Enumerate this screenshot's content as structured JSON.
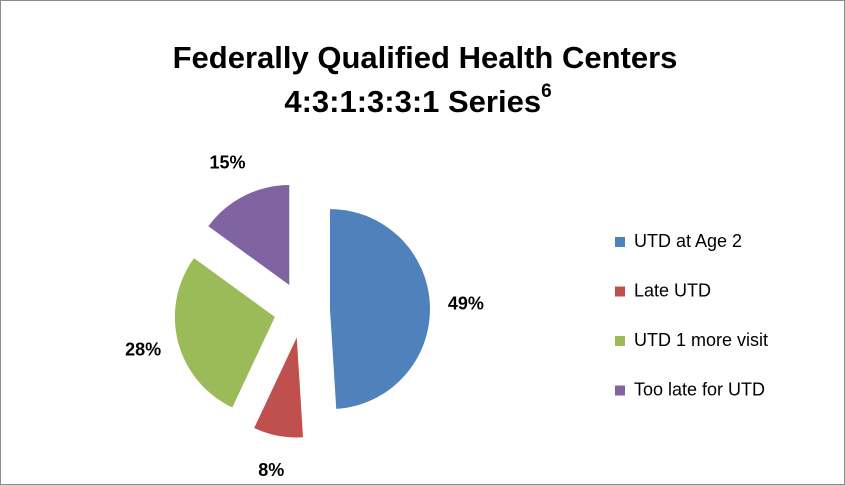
{
  "chart_data": {
    "type": "pie",
    "title": [
      "Federally Qualified Health Centers",
      "4:3:1:3:3:1 Series"
    ],
    "title_superscript": "6",
    "categories": [
      "UTD at Age 2",
      "Late UTD",
      "UTD 1 more visit",
      "Too late for UTD"
    ],
    "values": [
      49,
      8,
      28,
      15
    ],
    "value_labels": [
      "49%",
      "8%",
      "28%",
      "15%"
    ],
    "colors": [
      "#4f81bd",
      "#c0504d",
      "#9bbb59",
      "#8064a2"
    ],
    "exploded": true,
    "legend": "right"
  }
}
